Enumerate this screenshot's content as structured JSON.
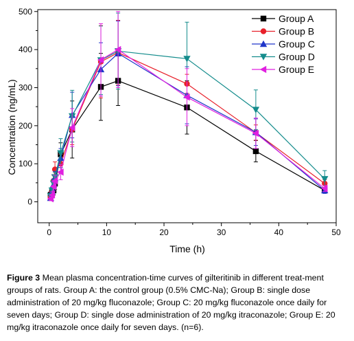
{
  "chart_data": {
    "type": "line",
    "xlabel": "Time (h)",
    "ylabel": "Concentration (ng/mL)",
    "xlim": [
      -2,
      50
    ],
    "ylim": [
      -55,
      505
    ],
    "x_ticks": [
      0,
      10,
      20,
      30,
      40,
      50
    ],
    "y_ticks": [
      0,
      100,
      200,
      300,
      400,
      500
    ],
    "legend_position": "top-right",
    "error_bars": true,
    "series": [
      {
        "name": "Group A",
        "color": "#000000",
        "marker": "square",
        "x": [
          0.25,
          0.5,
          0.75,
          1,
          2,
          4,
          9,
          12,
          24,
          36,
          48
        ],
        "y": [
          18,
          25,
          30,
          48,
          125,
          190,
          302,
          318,
          248,
          133,
          30
        ],
        "err": [
          8,
          10,
          12,
          15,
          30,
          75,
          88,
          65,
          70,
          28,
          6
        ]
      },
      {
        "name": "Group B",
        "color": "#e8202a",
        "marker": "circle",
        "x": [
          0.25,
          0.5,
          0.75,
          1,
          2,
          4,
          9,
          12,
          24,
          36,
          48
        ],
        "y": [
          12,
          25,
          55,
          85,
          100,
          190,
          368,
          392,
          310,
          182,
          48
        ],
        "err": [
          5,
          8,
          15,
          20,
          25,
          40,
          95,
          85,
          25,
          20,
          10
        ]
      },
      {
        "name": "Group C",
        "color": "#1f35c9",
        "marker": "triangle-up",
        "x": [
          0.25,
          0.5,
          0.75,
          1,
          2,
          4,
          9,
          12,
          24,
          36,
          48
        ],
        "y": [
          10,
          28,
          45,
          62,
          115,
          228,
          348,
          390,
          280,
          183,
          30
        ],
        "err": [
          5,
          10,
          15,
          18,
          25,
          60,
          70,
          85,
          75,
          35,
          8
        ]
      },
      {
        "name": "Group D",
        "color": "#148c8c",
        "marker": "triangle-down",
        "x": [
          0.25,
          0.5,
          0.75,
          1,
          2,
          4,
          9,
          12,
          24,
          36,
          48
        ],
        "y": [
          15,
          30,
          48,
          65,
          128,
          225,
          372,
          396,
          376,
          242,
          60
        ],
        "err": [
          5,
          8,
          10,
          12,
          38,
          68,
          90,
          100,
          96,
          52,
          22
        ]
      },
      {
        "name": "Group E",
        "color": "#e020e0",
        "marker": "triangle-left",
        "x": [
          0.25,
          0.5,
          0.75,
          1,
          2,
          4,
          9,
          12,
          24,
          36,
          48
        ],
        "y": [
          8,
          18,
          40,
          55,
          78,
          195,
          373,
          400,
          275,
          180,
          35
        ],
        "err": [
          5,
          8,
          12,
          15,
          20,
          50,
          95,
          100,
          75,
          40,
          8
        ]
      }
    ]
  },
  "caption": {
    "label": "Figure 3",
    "text": "Mean plasma concentration-time curves of gilteritinib in different treat-ment groups of rats. Group A: the control group (0.5% CMC-Na); Group B: single dose administration of 20 mg/kg fluconazole; Group C: 20 mg/kg fluconazole once daily for seven days; Group D: single dose administration of 20 mg/kg itraconazole; Group E: 20 mg/kg itraconazole once daily for seven days. (n=6)."
  }
}
